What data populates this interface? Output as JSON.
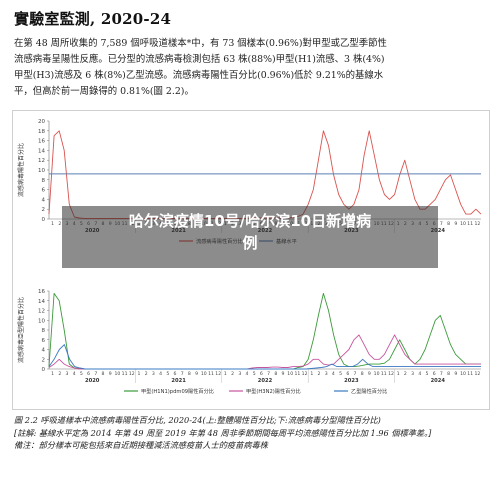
{
  "heading": "實驗室監測, 2020-24",
  "paragraph": [
    "在第 48 周所收集的 7,589 個呼吸道樣本*中，有 73 個樣本(0.96%)對甲型或乙型季節性",
    "流感病毒呈陽性反應。已分型的流感病毒檢測包括 63 株(88%)甲型(H1)流感、3 株(4%)",
    "甲型(H3)流感及 6 株(8%)乙型流感。流感病毒陽性百分比(0.96%)低於 9.21%的基線水",
    "平，但高於前一周錄得的 0.81%(圖 2.2)。"
  ],
  "overlay_title": [
    "哈尔滨疫情10号/哈尔滨10日新增病",
    "例"
  ],
  "colors": {
    "overall": "#d9534f",
    "baseline": "#5b7fb5",
    "h1": "#3c9b3c",
    "h3": "#c8539e",
    "fluB": "#3a78c2"
  },
  "chart_data": [
    {
      "type": "line",
      "ylabel": "流感病毒陽性百分比",
      "ylim": [
        0,
        20
      ],
      "yticks": [
        "0",
        "2",
        "4",
        "6",
        "8",
        "10",
        "12",
        "14",
        "16",
        "18",
        "20"
      ],
      "years": [
        "2020",
        "2021",
        "2022",
        "2023",
        "2024"
      ],
      "months": [
        "1",
        "2",
        "3",
        "4",
        "5",
        "6",
        "7",
        "8",
        "9",
        "10",
        "11",
        "12"
      ],
      "legend": [
        "流感病毒陽性百分比",
        "基線水平"
      ],
      "series": [
        {
          "name": "流感病毒陽性百分比",
          "values": [
            1,
            17,
            18,
            14,
            3,
            0.4,
            0.2,
            0.1,
            0.1,
            0.1,
            0.1,
            0.1,
            0.1,
            0.1,
            0.1,
            0.1,
            0.1,
            0.1,
            0.1,
            0.1,
            0.1,
            0.1,
            0.1,
            0.1,
            0.1,
            0.1,
            0.1,
            0.1,
            0.1,
            0.1,
            0.1,
            0.1,
            0.1,
            0.1,
            0.1,
            0.1,
            0.1,
            0.1,
            0.1,
            0.1,
            0.2,
            0.2,
            0.2,
            0.2,
            0.2,
            0.2,
            0.2,
            0.2,
            0.3,
            0.5,
            1,
            3,
            6,
            12,
            18,
            15,
            9,
            5,
            3,
            2,
            3,
            6,
            13,
            18,
            13,
            8,
            5,
            4,
            5,
            9,
            12,
            8,
            4,
            2,
            2,
            3,
            4,
            6,
            8,
            9,
            6,
            3,
            1,
            1,
            2,
            1
          ]
        },
        {
          "name": "基線水平",
          "values": [
            9.21
          ]
        }
      ]
    },
    {
      "type": "line",
      "ylabel": "流感病毒亞型陽性百分比",
      "ylim": [
        0,
        16
      ],
      "yticks": [
        "0",
        "2",
        "4",
        "6",
        "8",
        "10",
        "12",
        "14",
        "16"
      ],
      "years": [
        "2020",
        "2021",
        "2022",
        "2023",
        "2024"
      ],
      "months": [
        "1",
        "2",
        "3",
        "4",
        "5",
        "6",
        "7",
        "8",
        "9",
        "10",
        "11",
        "12"
      ],
      "legend": [
        "甲型(H1N1)pdm09陽性百分比",
        "甲型(H3N2)陽性百分比",
        "乙型陽性百分比"
      ],
      "series": [
        {
          "name": "甲型(H1N1)pdm09陽性百分比",
          "values": [
            0.5,
            15.5,
            14,
            8,
            1,
            0.2,
            0.1,
            0,
            0,
            0,
            0,
            0,
            0,
            0,
            0,
            0,
            0,
            0,
            0,
            0,
            0,
            0,
            0,
            0,
            0,
            0,
            0,
            0,
            0,
            0,
            0,
            0,
            0,
            0,
            0,
            0,
            0,
            0,
            0,
            0,
            0,
            0,
            0,
            0,
            0,
            0,
            0,
            0,
            0,
            0.3,
            0.5,
            2,
            6,
            11,
            15.5,
            12,
            7,
            3,
            1,
            0.5,
            0.5,
            0.6,
            0.8,
            1,
            1,
            1,
            1.2,
            2,
            4,
            6,
            4,
            2,
            1,
            2,
            4,
            7,
            10,
            11,
            8,
            5,
            3,
            2,
            1,
            1,
            1,
            1
          ]
        },
        {
          "name": "甲型(H3N2)陽性百分比",
          "values": [
            0.3,
            1,
            2,
            1,
            0.5,
            0.2,
            0,
            0,
            0,
            0,
            0,
            0,
            0,
            0,
            0,
            0,
            0,
            0,
            0,
            0,
            0,
            0,
            0,
            0,
            0,
            0,
            0,
            0,
            0,
            0,
            0,
            0,
            0,
            0,
            0,
            0,
            0,
            0,
            0,
            0,
            0.2,
            0.3,
            0.3,
            0.3,
            0.4,
            0.4,
            0.3,
            0.3,
            0.5,
            0.5,
            0.6,
            1,
            2,
            2,
            1,
            0.8,
            1,
            2,
            3,
            4,
            6,
            7,
            5,
            3,
            2,
            2,
            3,
            5,
            7,
            5,
            3,
            2,
            1,
            1,
            1,
            1,
            1,
            1,
            1,
            1,
            1,
            1,
            1,
            1,
            1,
            1
          ]
        },
        {
          "name": "乙型陽性百分比",
          "values": [
            0.5,
            2,
            4,
            5,
            2,
            0.5,
            0.2,
            0,
            0,
            0,
            0,
            0,
            0,
            0,
            0,
            0,
            0,
            0,
            0,
            0,
            0,
            0,
            0,
            0,
            0,
            0,
            0,
            0,
            0,
            0,
            0,
            0,
            0,
            0,
            0,
            0,
            0,
            0,
            0,
            0,
            0,
            0,
            0,
            0,
            0,
            0,
            0,
            0,
            0,
            0,
            0,
            0.1,
            0.2,
            0.3,
            0.5,
            1,
            0.5,
            0.5,
            0.5,
            0.5,
            1,
            2,
            1,
            0.5,
            0.5,
            0.5,
            0.5,
            0.5,
            0.5,
            0.5,
            0.5,
            0.5,
            0.5,
            0.5,
            0.5,
            0.5,
            0.5,
            0.5,
            0.5,
            0.5,
            0.5,
            0.5,
            0.5,
            0.5,
            0.5
          ]
        }
      ]
    }
  ],
  "caption": [
    "圖 2.2  呼吸道樣本中流感病毒陽性百分比, 2020-24(上:整體陽性百分比;下:流感病毒分型陽性百分比)",
    "[註解: 基線水平定為 2014 年第 49 周至 2019 年第 48 周非季節期間每周平均流感陽性百分比加 1.96 個標準差。]",
    "備注：部分樣本可能包括來自近期接種減活流感疫苗人士的疫苗病毒株"
  ]
}
